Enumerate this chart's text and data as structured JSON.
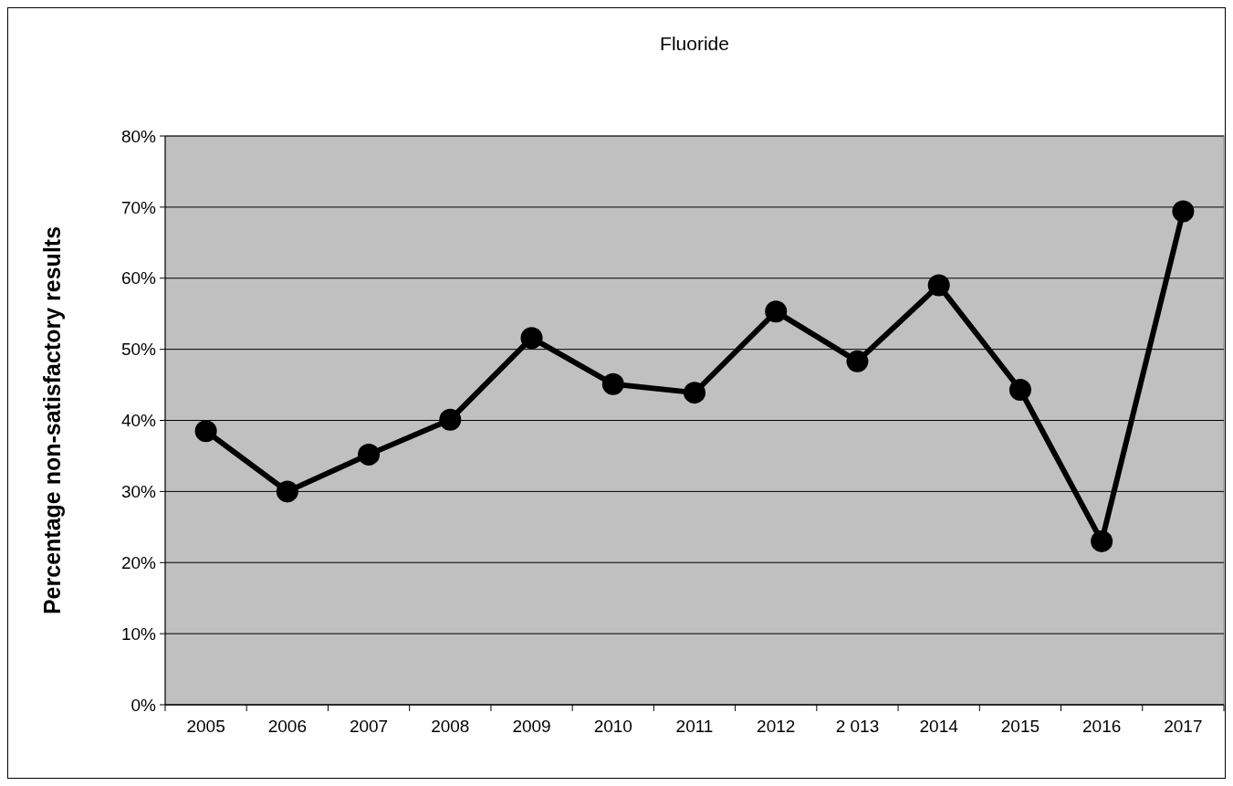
{
  "chart_data": {
    "type": "line",
    "title": "Fluoride",
    "ylabel": "Percentage non-satisfactory results",
    "categories": [
      "2005",
      "2006",
      "2007",
      "2008",
      "2009",
      "2010",
      "2011",
      "2012",
      "2 013",
      "2014",
      "2015",
      "2016",
      "2017"
    ],
    "series": [
      {
        "color": "#000000",
        "values": [
          38.5,
          30,
          35.2,
          40.1,
          51.6,
          45.1,
          43.9,
          55.3,
          48.3,
          59,
          44.3,
          23,
          69.4
        ]
      }
    ],
    "ylim": [
      0,
      80
    ],
    "yticks": [
      {
        "value": 0,
        "label": "0%"
      },
      {
        "value": 10,
        "label": "10%"
      },
      {
        "value": 20,
        "label": "20%"
      },
      {
        "value": 30,
        "label": "30%"
      },
      {
        "value": 40,
        "label": "40%"
      },
      {
        "value": 50,
        "label": "50%"
      },
      {
        "value": 60,
        "label": "60%"
      },
      {
        "value": 70,
        "label": "70%"
      },
      {
        "value": 80,
        "label": "80%"
      }
    ],
    "grid": "y",
    "marker": "circle",
    "line_style": "solid"
  }
}
